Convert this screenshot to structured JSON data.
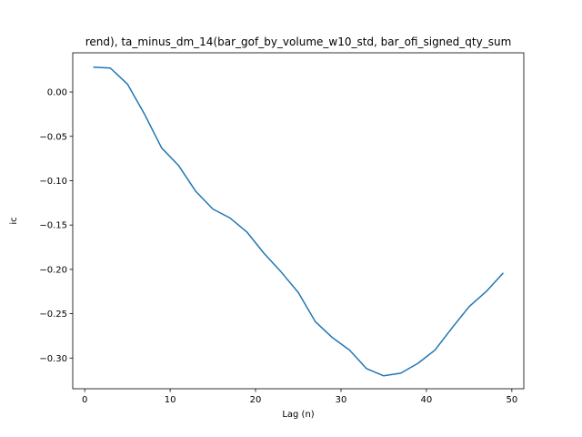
{
  "chart_data": {
    "type": "line",
    "title": "rend), ta_minus_dm_14(bar_gof_by_volume_w10_std, bar_ofi_signed_qty_sum",
    "xlabel": "Lag (n)",
    "ylabel": "ic",
    "xlim": [
      -1.4,
      51.4
    ],
    "ylim": [
      -0.3346,
      0.0442
    ],
    "xticks": [
      0,
      10,
      20,
      30,
      40,
      50
    ],
    "yticks": [
      0.0,
      -0.05,
      -0.1,
      -0.15,
      -0.2,
      -0.25,
      -0.3
    ],
    "xtick_labels": [
      "0",
      "10",
      "20",
      "30",
      "40",
      "50"
    ],
    "ytick_labels": [
      "0.00",
      "−0.05",
      "−0.10",
      "−0.15",
      "−0.20",
      "−0.25",
      "−0.30"
    ],
    "grid": false,
    "line_color": "#1f77b4",
    "series": [
      {
        "x": [
          1,
          3,
          5,
          7,
          9,
          11,
          13,
          15,
          17,
          19,
          21,
          23,
          25,
          27,
          29,
          31,
          33,
          35,
          37,
          39,
          41,
          43,
          45,
          47,
          49
        ],
        "y": [
          0.028,
          0.027,
          0.009,
          -0.025,
          -0.063,
          -0.083,
          -0.112,
          -0.132,
          -0.142,
          -0.158,
          -0.182,
          -0.203,
          -0.226,
          -0.259,
          -0.277,
          -0.291,
          -0.312,
          -0.32,
          -0.317,
          -0.306,
          -0.291,
          -0.266,
          -0.242,
          -0.225,
          -0.204
        ]
      }
    ]
  }
}
